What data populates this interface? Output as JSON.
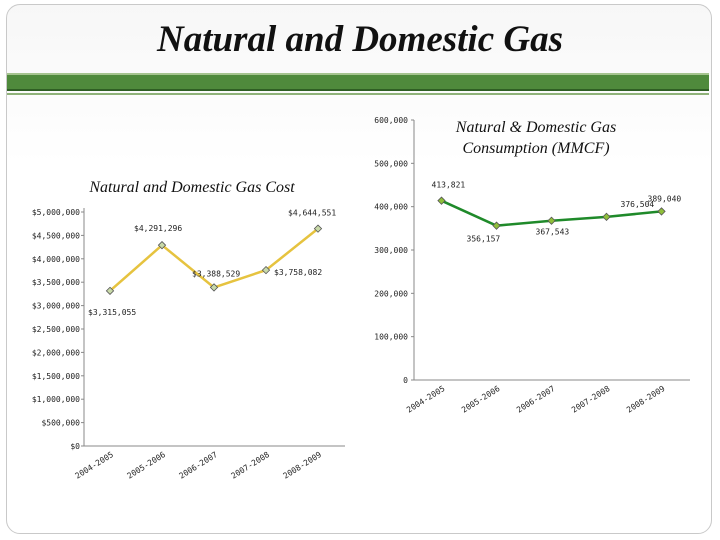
{
  "page": {
    "title": "Natural and Domestic Gas"
  },
  "chart_data": [
    {
      "type": "line",
      "title": "Natural and Domestic Gas Cost",
      "categories": [
        "2004-2005",
        "2005-2006",
        "2006-2007",
        "2007-2008",
        "2008-2009"
      ],
      "values": [
        3315055,
        4291296,
        3388529,
        3758082,
        4644551
      ],
      "value_labels": [
        "$3,315,055",
        "$4,291,296",
        "$3,388,529",
        "$3,758,082",
        "$4,644,551"
      ],
      "ylim": [
        0,
        5000000
      ],
      "y_ticks": [
        0,
        500000,
        1000000,
        1500000,
        2000000,
        2500000,
        3000000,
        3500000,
        4000000,
        4500000,
        5000000
      ],
      "y_tick_labels": [
        "$0",
        "$500,000",
        "$1,000,000",
        "$1,500,000",
        "$2,000,000",
        "$2,500,000",
        "$3,000,000",
        "$3,500,000",
        "$4,000,000",
        "$4,500,000",
        "$5,000,000"
      ],
      "xlabel": "",
      "ylabel": "",
      "grid": false,
      "line_color": "#e6c33f",
      "marker_color": "#c8d9a8"
    },
    {
      "type": "line",
      "title": "Natural & Domestic Gas Consumption (MMCF)",
      "categories": [
        "2004-2005",
        "2005-2006",
        "2006-2007",
        "2007-2008",
        "2008-2009"
      ],
      "values": [
        413821,
        356157,
        367543,
        376504,
        389040
      ],
      "value_labels": [
        "413,821",
        "356,157",
        "367,543",
        "376,504",
        "389,040"
      ],
      "ylim": [
        0,
        600000
      ],
      "y_ticks": [
        0,
        100000,
        200000,
        300000,
        400000,
        500000,
        600000
      ],
      "y_tick_labels": [
        "0",
        "100,000",
        "200,000",
        "300,000",
        "400,000",
        "500,000",
        "600,000"
      ],
      "xlabel": "",
      "ylabel": "",
      "grid": false,
      "line_color": "#1f8a2a",
      "marker_color": "#8fbf3a"
    }
  ]
}
